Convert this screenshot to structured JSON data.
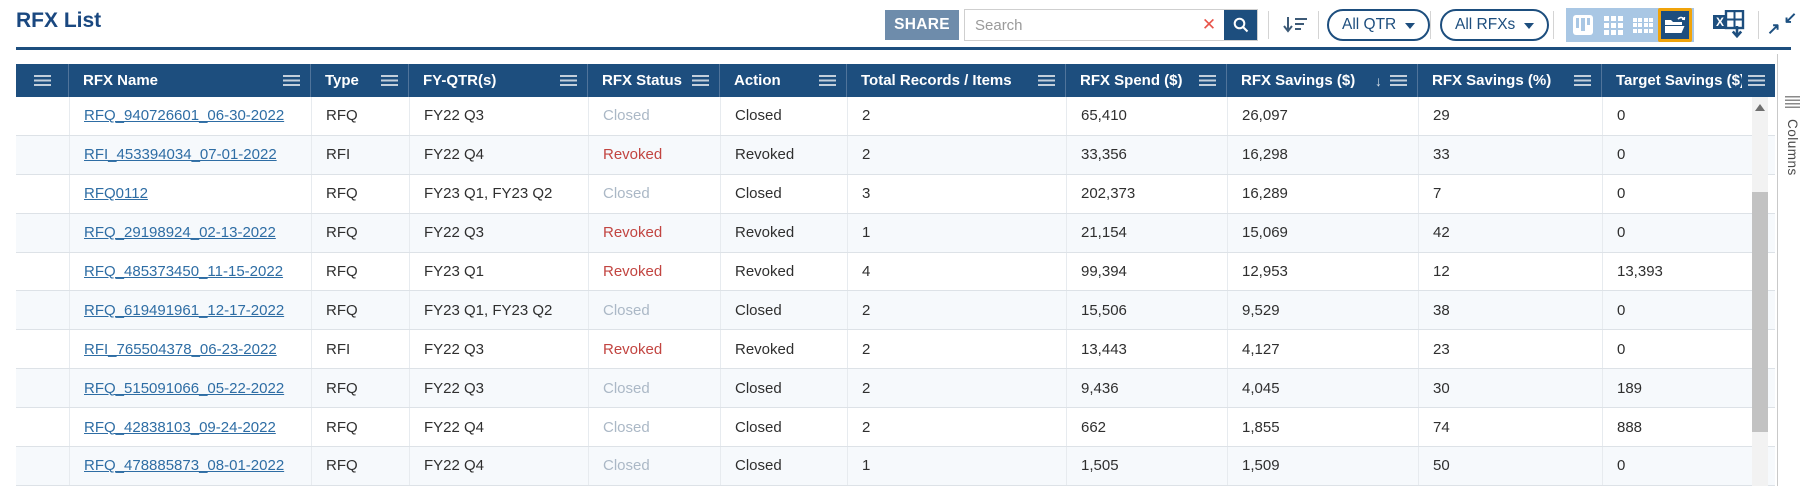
{
  "page": {
    "title": "RFX List"
  },
  "toolbar": {
    "share_label": "SHARE",
    "search_placeholder": "Search",
    "qtr_filter": {
      "label": "All QTR"
    },
    "rfx_filter": {
      "label": "All RFXs"
    }
  },
  "icons": {
    "clear": "✕",
    "sort_desc": "↓",
    "collapse_tr": "↙",
    "collapse_bl": "↗"
  },
  "colors": {
    "accent": "#1d4e7e",
    "active_highlight": "#f0a30a",
    "link": "#2e6da4",
    "status_closed": "#abb8c6",
    "status_revoked": "#c24541",
    "share_bg": "#6e8cab"
  },
  "side_panel": {
    "label": "Columns"
  },
  "table": {
    "columns": [
      "RFX Name",
      "Type",
      "FY-QTR(s)",
      "RFX Status",
      "Action",
      "Total Records / Items",
      "RFX Spend ($)",
      "RFX Savings ($)",
      "RFX Savings (%)",
      "Target Savings ($)"
    ],
    "sorted_column": "RFX Savings ($)",
    "sort_direction": "desc",
    "rows": [
      {
        "name": "RFQ_940726601_06-30-2022",
        "type": "RFQ",
        "fy_qtr": "FY22 Q3",
        "status": "Closed",
        "action": "Closed",
        "total_records": "2",
        "spend": "65,410",
        "savings": "26,097",
        "savings_pct": "29",
        "target_savings": "0"
      },
      {
        "name": "RFI_453394034_07-01-2022",
        "type": "RFI",
        "fy_qtr": "FY22 Q4",
        "status": "Revoked",
        "action": "Revoked",
        "total_records": "2",
        "spend": "33,356",
        "savings": "16,298",
        "savings_pct": "33",
        "target_savings": "0"
      },
      {
        "name": "RFQ0112",
        "type": "RFQ",
        "fy_qtr": "FY23 Q1, FY23 Q2",
        "status": "Closed",
        "action": "Closed",
        "total_records": "3",
        "spend": "202,373",
        "savings": "16,289",
        "savings_pct": "7",
        "target_savings": "0"
      },
      {
        "name": "RFQ_29198924_02-13-2022",
        "type": "RFQ",
        "fy_qtr": "FY22 Q3",
        "status": "Revoked",
        "action": "Revoked",
        "total_records": "1",
        "spend": "21,154",
        "savings": "15,069",
        "savings_pct": "42",
        "target_savings": "0"
      },
      {
        "name": "RFQ_485373450_11-15-2022",
        "type": "RFQ",
        "fy_qtr": "FY23 Q1",
        "status": "Revoked",
        "action": "Revoked",
        "total_records": "4",
        "spend": "99,394",
        "savings": "12,953",
        "savings_pct": "12",
        "target_savings": "13,393"
      },
      {
        "name": "RFQ_619491961_12-17-2022",
        "type": "RFQ",
        "fy_qtr": "FY23 Q1, FY23 Q2",
        "status": "Closed",
        "action": "Closed",
        "total_records": "2",
        "spend": "15,506",
        "savings": "9,529",
        "savings_pct": "38",
        "target_savings": "0"
      },
      {
        "name": "RFI_765504378_06-23-2022",
        "type": "RFI",
        "fy_qtr": "FY22 Q3",
        "status": "Revoked",
        "action": "Revoked",
        "total_records": "2",
        "spend": "13,443",
        "savings": "4,127",
        "savings_pct": "23",
        "target_savings": "0"
      },
      {
        "name": "RFQ_515091066_05-22-2022",
        "type": "RFQ",
        "fy_qtr": "FY22 Q3",
        "status": "Closed",
        "action": "Closed",
        "total_records": "2",
        "spend": "9,436",
        "savings": "4,045",
        "savings_pct": "30",
        "target_savings": "189"
      },
      {
        "name": "RFQ_42838103_09-24-2022",
        "type": "RFQ",
        "fy_qtr": "FY22 Q4",
        "status": "Closed",
        "action": "Closed",
        "total_records": "2",
        "spend": "662",
        "savings": "1,855",
        "savings_pct": "74",
        "target_savings": "888"
      },
      {
        "name": "RFQ_478885873_08-01-2022",
        "type": "RFQ",
        "fy_qtr": "FY22 Q4",
        "status": "Closed",
        "action": "Closed",
        "total_records": "1",
        "spend": "1,505",
        "savings": "1,509",
        "savings_pct": "50",
        "target_savings": "0"
      }
    ]
  }
}
